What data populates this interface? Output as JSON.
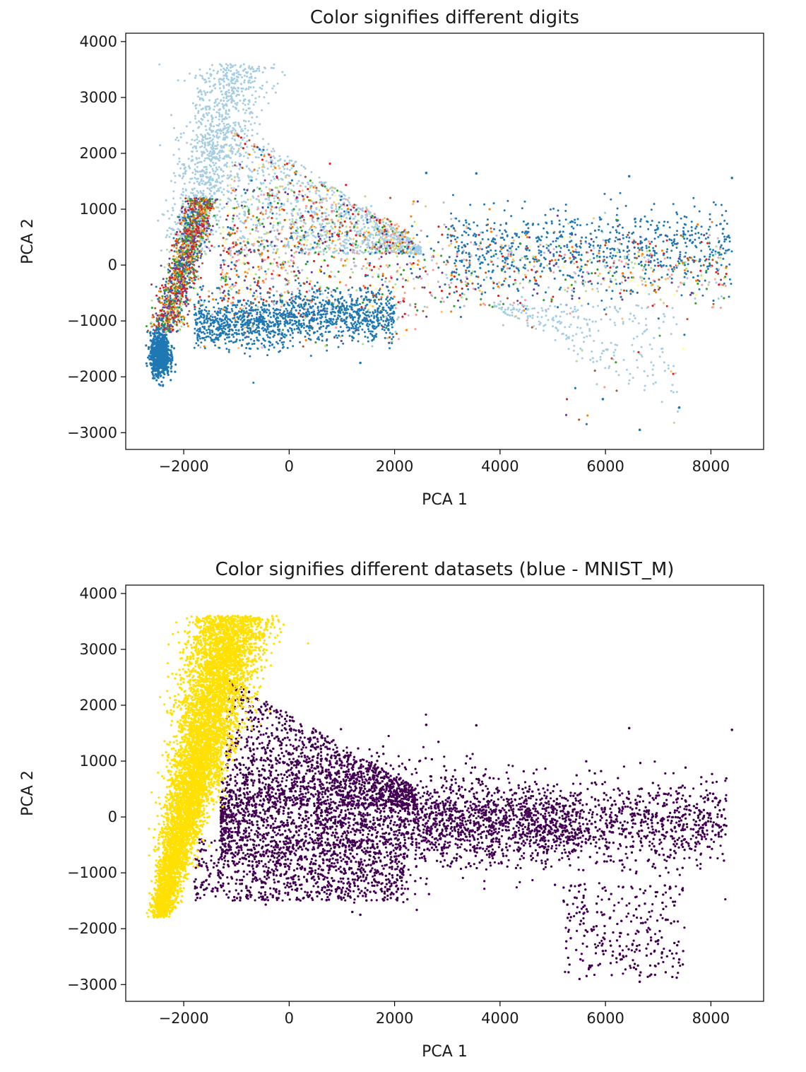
{
  "chart_data": [
    {
      "type": "scatter",
      "title": "Color signifies different digits",
      "xlabel": "PCA 1",
      "ylabel": "PCA 2",
      "xlim": [
        -3100,
        9000
      ],
      "ylim": [
        -3300,
        4150
      ],
      "xticks": [
        -2000,
        0,
        2000,
        4000,
        6000,
        8000
      ],
      "yticks": [
        -3000,
        -2000,
        -1000,
        0,
        1000,
        2000,
        3000,
        4000
      ],
      "xtick_labels": [
        "−2000",
        "0",
        "2000",
        "4000",
        "6000",
        "8000"
      ],
      "ytick_labels": [
        "−3000",
        "−2000",
        "−1000",
        "0",
        "1000",
        "2000",
        "3000",
        "4000"
      ],
      "grid": false,
      "colormap": "Paired",
      "colors": [
        "#a6cee3",
        "#1f78b4",
        "#b2df8a",
        "#33a02c",
        "#fb9a99",
        "#e31a1c",
        "#fdbf6f",
        "#ff7f00",
        "#cab2d6",
        "#6a3d9a",
        "#ffff99",
        "#b15928"
      ],
      "clusters": [
        {
          "region": "dense cluster left",
          "x_range": [
            -2550,
            -900
          ],
          "y_range": [
            -1800,
            3800
          ]
        },
        {
          "region": "upper fan",
          "x_range": [
            -1000,
            2500
          ],
          "y_range": [
            200,
            2800
          ]
        },
        {
          "region": "central band",
          "x_range": [
            -1500,
            8400
          ],
          "y_range": [
            -1500,
            1650
          ]
        },
        {
          "region": "lower blue band",
          "x_range": [
            -2000,
            2000
          ],
          "y_range": [
            -1800,
            -400
          ]
        },
        {
          "region": "lower-right tail",
          "x_range": [
            5200,
            7500
          ],
          "y_range": [
            -2950,
            -1200
          ]
        }
      ],
      "notable_points": [
        {
          "x": 2600,
          "y": 1650
        },
        {
          "x": 3550,
          "y": 1640
        },
        {
          "x": 6450,
          "y": 1590
        },
        {
          "x": 8400,
          "y": 1560
        },
        {
          "x": 1350,
          "y": -1750
        },
        {
          "x": 6650,
          "y": -2950
        },
        {
          "x": 7400,
          "y": -2550
        },
        {
          "x": 5950,
          "y": -2400
        }
      ]
    },
    {
      "type": "scatter",
      "title": "Color signifies different datasets (blue - MNIST_M)",
      "xlabel": "PCA 1",
      "ylabel": "PCA 2",
      "xlim": [
        -3100,
        9000
      ],
      "ylim": [
        -3300,
        4150
      ],
      "xticks": [
        -2000,
        0,
        2000,
        4000,
        6000,
        8000
      ],
      "yticks": [
        -3000,
        -2000,
        -1000,
        0,
        1000,
        2000,
        3000,
        4000
      ],
      "xtick_labels": [
        "−2000",
        "0",
        "2000",
        "4000",
        "6000",
        "8000"
      ],
      "ytick_labels": [
        "−3000",
        "−2000",
        "−1000",
        "0",
        "1000",
        "2000",
        "3000",
        "4000"
      ],
      "grid": false,
      "series": [
        {
          "color": "#ffe000",
          "region": "yellow cluster",
          "x_range": [
            -2550,
            -800
          ],
          "y_range": [
            -1850,
            3800
          ]
        },
        {
          "color": "#440154",
          "region": "purple cloud",
          "x_range": [
            -1500,
            8400
          ],
          "y_range": [
            -2950,
            2800
          ]
        }
      ]
    }
  ]
}
